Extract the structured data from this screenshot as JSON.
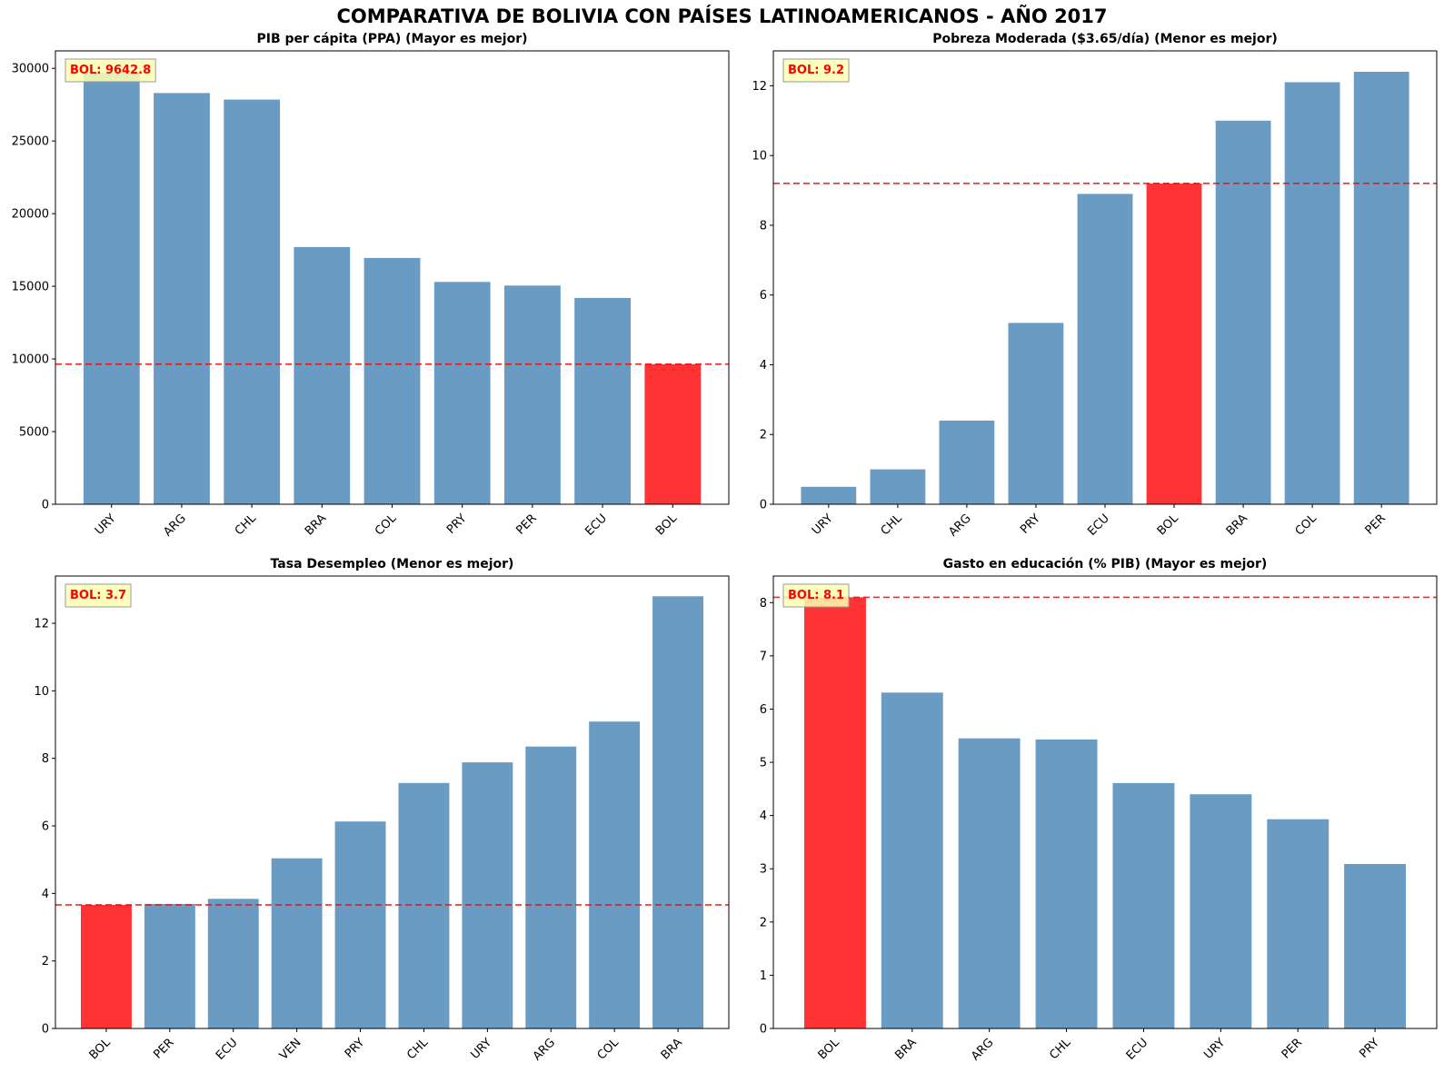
{
  "figure": {
    "title": "COMPARATIVA DE BOLIVIA CON PAÍSES LATINOAMERICANOS - AÑO 2017"
  },
  "colors": {
    "bar": "#6a9bc3",
    "highlight": "#ff3333",
    "reference_line": "#ff0000",
    "annotation_bg": "#ffffb3"
  },
  "chart_data": [
    {
      "type": "bar",
      "title": "PIB per cápita (PPA) (Mayor es mejor)",
      "categories": [
        "URY",
        "ARG",
        "CHL",
        "BRA",
        "COL",
        "PRY",
        "PER",
        "ECU",
        "BOL"
      ],
      "values": [
        29700,
        28300,
        27850,
        17700,
        16950,
        15300,
        15050,
        14200,
        9642.8
      ],
      "highlight": "BOL",
      "reference_value": 9642.8,
      "annotation": "BOL: 9642.8",
      "ylim": [
        0,
        31200
      ],
      "yticks": [
        0,
        5000,
        10000,
        15000,
        20000,
        25000,
        30000
      ],
      "ytick_decimals": 0,
      "grid": false
    },
    {
      "type": "bar",
      "title": "Pobreza Moderada ($3.65/día) (Menor es mejor)",
      "categories": [
        "URY",
        "CHL",
        "ARG",
        "PRY",
        "ECU",
        "BOL",
        "BRA",
        "COL",
        "PER"
      ],
      "values": [
        0.5,
        1.0,
        2.4,
        5.2,
        8.9,
        9.2,
        11.0,
        12.1,
        12.4
      ],
      "highlight": "BOL",
      "reference_value": 9.2,
      "annotation": "BOL: 9.2",
      "ylim": [
        0,
        13.0
      ],
      "yticks": [
        0,
        2,
        4,
        6,
        8,
        10,
        12
      ],
      "ytick_decimals": 0,
      "grid": false
    },
    {
      "type": "bar",
      "title": "Tasa Desempleo (Menor es mejor)",
      "categories": [
        "BOL",
        "PER",
        "ECU",
        "VEN",
        "PRY",
        "CHL",
        "URY",
        "ARG",
        "COL",
        "BRA"
      ],
      "values": [
        3.66,
        3.69,
        3.84,
        5.04,
        6.13,
        7.27,
        7.88,
        8.35,
        9.09,
        12.8
      ],
      "highlight": "BOL",
      "reference_value": 3.66,
      "annotation": "BOL: 3.7",
      "ylim": [
        0,
        13.4
      ],
      "yticks": [
        0,
        2,
        4,
        6,
        8,
        10,
        12
      ],
      "ytick_decimals": 0,
      "grid": false
    },
    {
      "type": "bar",
      "title": "Gasto en educación (% PIB) (Mayor es mejor)",
      "categories": [
        "BOL",
        "BRA",
        "ARG",
        "CHL",
        "ECU",
        "URY",
        "PER",
        "PRY"
      ],
      "values": [
        8.1,
        6.31,
        5.45,
        5.43,
        4.61,
        4.4,
        3.93,
        3.09
      ],
      "highlight": "BOL",
      "reference_value": 8.1,
      "annotation": "BOL: 8.1",
      "ylim": [
        0,
        8.5
      ],
      "yticks": [
        0,
        1,
        2,
        3,
        4,
        5,
        6,
        7,
        8
      ],
      "ytick_decimals": 0,
      "grid": false
    }
  ]
}
